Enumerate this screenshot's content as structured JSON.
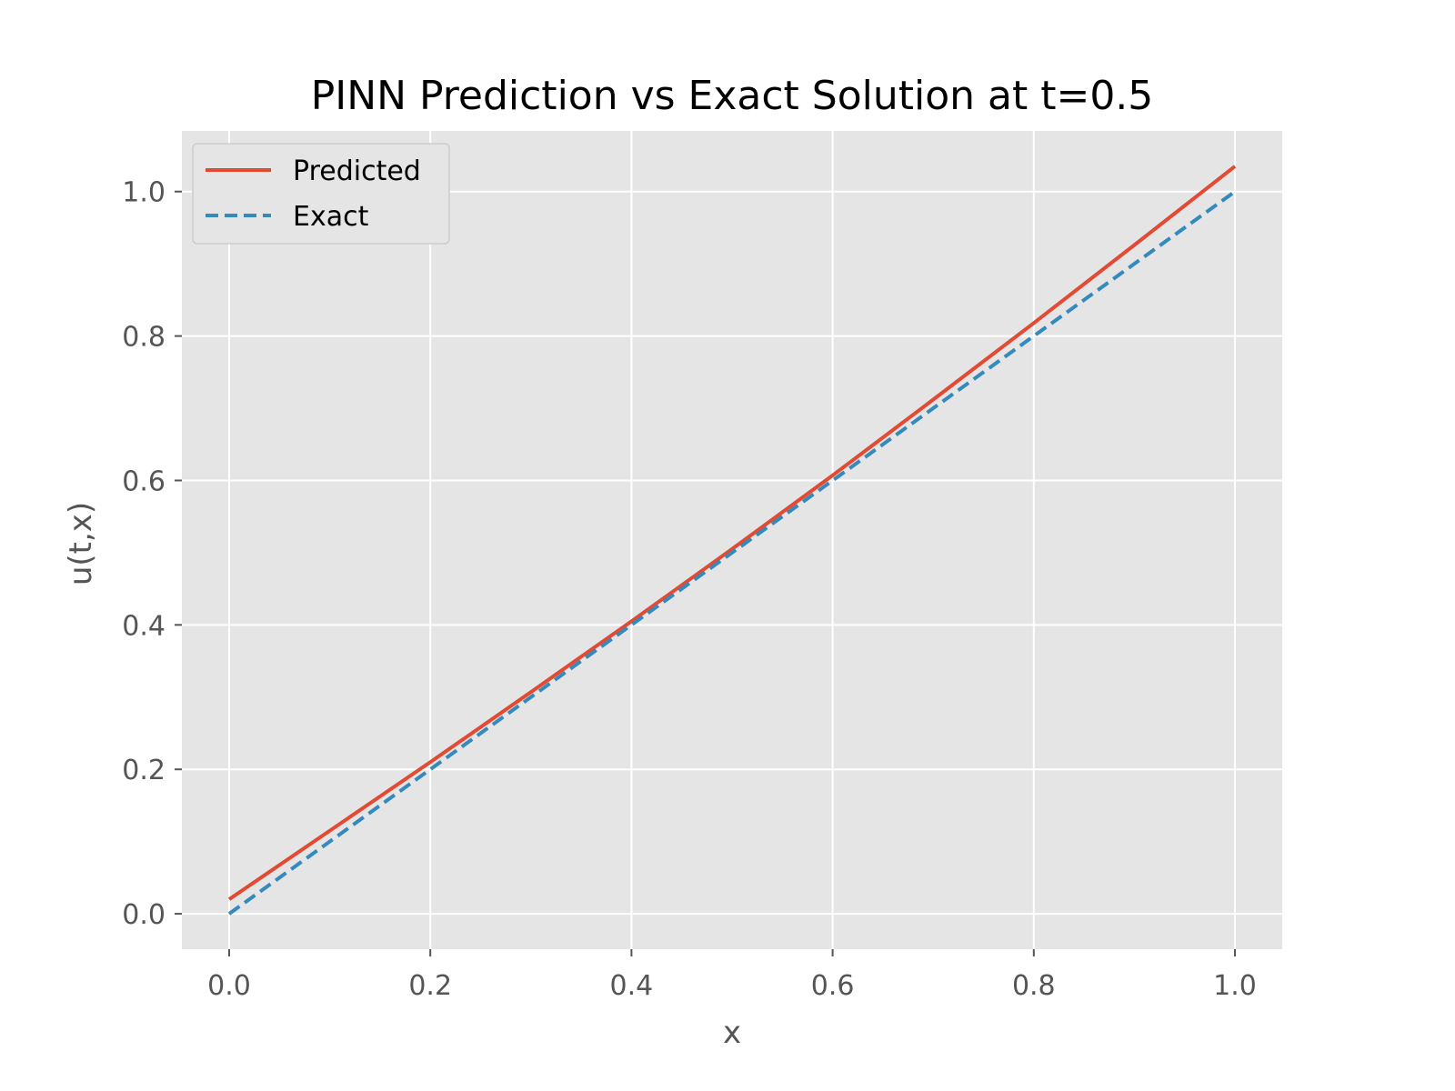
{
  "chart_data": {
    "type": "line",
    "title": "PINN Prediction vs Exact Solution at t=0.5",
    "xlabel": "x",
    "ylabel": "u(t,x)",
    "xlim": [
      -0.047,
      1.047
    ],
    "ylim": [
      -0.049,
      1.084
    ],
    "xticks": [
      0.0,
      0.2,
      0.4,
      0.6,
      0.8,
      1.0
    ],
    "xtick_labels": [
      "0.0",
      "0.2",
      "0.4",
      "0.6",
      "0.8",
      "1.0"
    ],
    "yticks": [
      0.0,
      0.2,
      0.4,
      0.6,
      0.8,
      1.0
    ],
    "ytick_labels": [
      "0.0",
      "0.2",
      "0.4",
      "0.6",
      "0.8",
      "1.0"
    ],
    "grid": true,
    "legend_position": "upper-left",
    "series": [
      {
        "name": "Predicted",
        "color": "#E24A33",
        "style": "solid",
        "x": [
          0.0,
          0.1,
          0.2,
          0.3,
          0.4,
          0.5,
          0.6,
          0.7,
          0.8,
          0.9,
          1.0
        ],
        "y": [
          0.02,
          0.115,
          0.21,
          0.307,
          0.405,
          0.505,
          0.607,
          0.712,
          0.818,
          0.926,
          1.035
        ]
      },
      {
        "name": "Exact",
        "color": "#348ABD",
        "style": "dashed",
        "x": [
          0.0,
          0.1,
          0.2,
          0.3,
          0.4,
          0.5,
          0.6,
          0.7,
          0.8,
          0.9,
          1.0
        ],
        "y": [
          0.0,
          0.1,
          0.2,
          0.3,
          0.4,
          0.5,
          0.6,
          0.7,
          0.8,
          0.9,
          1.0
        ]
      }
    ],
    "colors": {
      "plot_background": "#E5E5E5",
      "grid": "#FFFFFF",
      "tick_text": "#555555"
    }
  }
}
